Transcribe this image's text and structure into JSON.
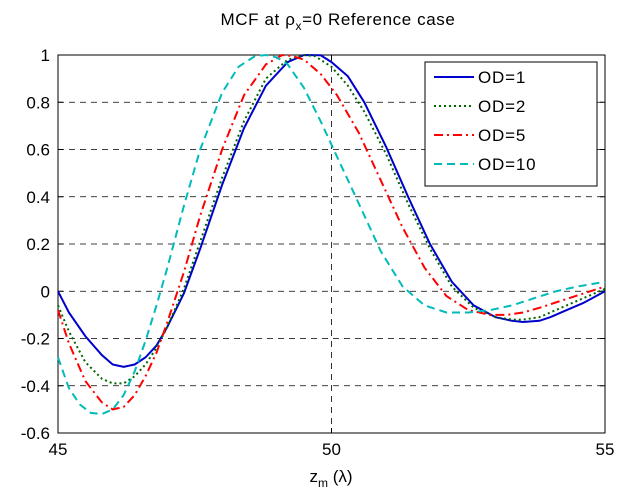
{
  "chart_data": {
    "type": "line",
    "title": {
      "prefix": "MCF at ",
      "symbol": "ρ",
      "subscript": "x",
      "suffix": "=0 Reference case"
    },
    "xlabel": {
      "main": "z",
      "subscript": "m",
      "suffix": " (λ)"
    },
    "ylabel": "",
    "xlim": [
      45,
      55
    ],
    "ylim": [
      -0.6,
      1
    ],
    "x_ticks": [
      45,
      50,
      55
    ],
    "x_tick_labels": [
      "45",
      "50",
      "55"
    ],
    "y_ticks": [
      -0.6,
      -0.4,
      -0.2,
      0,
      0.2,
      0.4,
      0.6,
      0.8,
      1
    ],
    "y_tick_labels": [
      "-0.6",
      "-0.4",
      "-0.2",
      "0",
      "0.2",
      "0.4",
      "0.6",
      "0.8",
      "1"
    ],
    "grid": true,
    "legend_position": "top-right",
    "series": [
      {
        "name": "OD=1",
        "color": "#0000cc",
        "dash": "solid",
        "x": [
          45,
          45.2,
          45.5,
          45.8,
          46,
          46.2,
          46.4,
          46.6,
          46.8,
          47,
          47.3,
          47.6,
          48,
          48.4,
          48.8,
          49.2,
          49.5,
          49.8,
          50,
          50.3,
          50.6,
          51,
          51.4,
          51.8,
          52.2,
          52.6,
          53,
          53.3,
          53.5,
          53.8,
          54,
          54.3,
          54.6,
          55
        ],
        "y": [
          0,
          -0.09,
          -0.19,
          -0.27,
          -0.31,
          -0.32,
          -0.31,
          -0.28,
          -0.23,
          -0.15,
          -0.01,
          0.18,
          0.45,
          0.69,
          0.87,
          0.97,
          1.0,
          0.999,
          0.97,
          0.91,
          0.8,
          0.61,
          0.4,
          0.2,
          0.04,
          -0.06,
          -0.11,
          -0.125,
          -0.13,
          -0.125,
          -0.11,
          -0.08,
          -0.05,
          0
        ]
      },
      {
        "name": "OD=2",
        "color": "#006600",
        "dash": "dotted",
        "x": [
          45,
          45.2,
          45.5,
          45.8,
          46,
          46.2,
          46.4,
          46.6,
          46.8,
          47,
          47.3,
          47.6,
          48,
          48.4,
          48.8,
          49.2,
          49.5,
          49.7,
          50,
          50.3,
          50.6,
          51,
          51.4,
          51.8,
          52.2,
          52.6,
          53,
          53.3,
          53.5,
          53.8,
          54,
          54.3,
          54.6,
          55
        ],
        "y": [
          -0.06,
          -0.17,
          -0.3,
          -0.37,
          -0.39,
          -0.39,
          -0.36,
          -0.31,
          -0.24,
          -0.15,
          0.01,
          0.21,
          0.48,
          0.72,
          0.9,
          0.98,
          1.0,
          0.995,
          0.95,
          0.87,
          0.76,
          0.58,
          0.37,
          0.18,
          0.02,
          -0.07,
          -0.11,
          -0.12,
          -0.12,
          -0.11,
          -0.09,
          -0.06,
          -0.03,
          0.01
        ]
      },
      {
        "name": "OD=5",
        "color": "#ff0000",
        "dash": "dashdot",
        "x": [
          45,
          45.2,
          45.5,
          45.8,
          46,
          46.2,
          46.4,
          46.6,
          46.8,
          47,
          47.3,
          47.6,
          48,
          48.4,
          48.8,
          49.1,
          49.3,
          49.5,
          49.8,
          50.1,
          50.5,
          50.9,
          51.3,
          51.7,
          52.1,
          52.5,
          52.9,
          53.2,
          53.5,
          53.8,
          54.2,
          54.6,
          55
        ],
        "y": [
          -0.08,
          -0.22,
          -0.38,
          -0.47,
          -0.5,
          -0.49,
          -0.44,
          -0.36,
          -0.26,
          -0.13,
          0.08,
          0.32,
          0.6,
          0.83,
          0.96,
          1.0,
          0.995,
          0.98,
          0.92,
          0.83,
          0.67,
          0.47,
          0.27,
          0.1,
          -0.02,
          -0.08,
          -0.1,
          -0.1,
          -0.09,
          -0.07,
          -0.04,
          -0.01,
          0.02
        ]
      },
      {
        "name": "OD=10",
        "color": "#00bbbb",
        "dash": "dashed",
        "x": [
          45,
          45.2,
          45.4,
          45.6,
          45.8,
          46,
          46.2,
          46.4,
          46.6,
          46.8,
          47,
          47.3,
          47.6,
          48,
          48.3,
          48.6,
          48.8,
          49,
          49.2,
          49.5,
          49.8,
          50.1,
          50.5,
          50.9,
          51.3,
          51.7,
          52.1,
          52.5,
          52.9,
          53.3,
          53.7,
          54.1,
          54.5,
          55
        ],
        "y": [
          -0.28,
          -0.41,
          -0.48,
          -0.515,
          -0.52,
          -0.5,
          -0.44,
          -0.34,
          -0.21,
          -0.06,
          0.1,
          0.36,
          0.6,
          0.84,
          0.95,
          0.995,
          1.0,
          0.99,
          0.96,
          0.86,
          0.72,
          0.57,
          0.37,
          0.17,
          0.02,
          -0.06,
          -0.09,
          -0.09,
          -0.08,
          -0.06,
          -0.03,
          0.0,
          0.02,
          0.04
        ]
      }
    ]
  }
}
